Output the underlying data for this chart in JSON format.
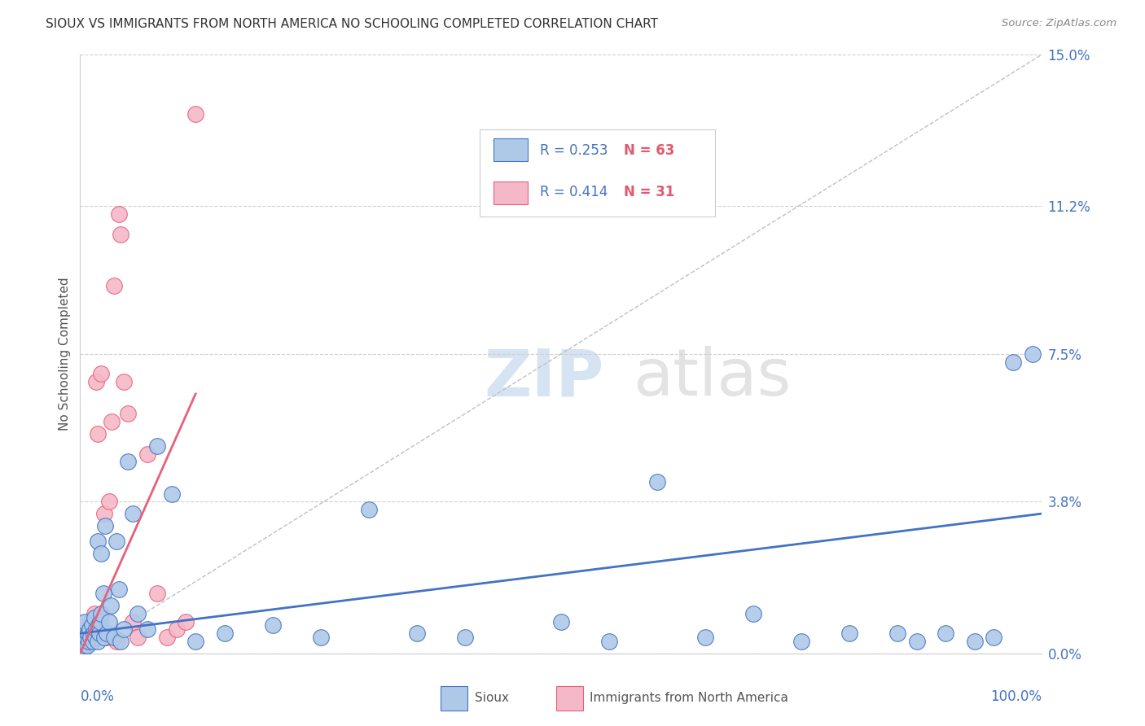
{
  "title": "SIOUX VS IMMIGRANTS FROM NORTH AMERICA NO SCHOOLING COMPLETED CORRELATION CHART",
  "source": "Source: ZipAtlas.com",
  "ylabel": "No Schooling Completed",
  "ytick_values": [
    0.0,
    3.8,
    7.5,
    11.2,
    15.0
  ],
  "xlim": [
    0.0,
    100.0
  ],
  "ylim": [
    0.0,
    15.0
  ],
  "color_sioux_fill": "#aec9e8",
  "color_sioux_edge": "#4472c4",
  "color_imm_fill": "#f4b8c8",
  "color_imm_edge": "#e8607a",
  "color_sioux_line": "#4472c4",
  "color_imm_line": "#e8607a",
  "color_diagonal": "#c0c0c0",
  "color_grid": "#d0d0d0",
  "watermark_zip": "ZIP",
  "watermark_atlas": "atlas",
  "title_color": "#333333",
  "source_color": "#888888",
  "axis_label_color": "#4472c4",
  "legend_r_color": "#4472c4",
  "legend_n_color": "#e05a70",
  "sioux_x": [
    0.2,
    0.3,
    0.3,
    0.4,
    0.5,
    0.5,
    0.6,
    0.7,
    0.8,
    0.9,
    1.0,
    1.1,
    1.2,
    1.3,
    1.4,
    1.5,
    1.6,
    1.7,
    1.8,
    1.9,
    2.0,
    2.1,
    2.2,
    2.4,
    2.5,
    2.8,
    3.0,
    3.2,
    3.5,
    3.8,
    4.0,
    4.2,
    4.5,
    5.0,
    5.5,
    6.0,
    7.0,
    8.0,
    9.5,
    12.0,
    15.0,
    20.0,
    25.0,
    30.0,
    35.0,
    40.0,
    50.0,
    55.0,
    60.0,
    65.0,
    70.0,
    75.0,
    80.0,
    85.0,
    87.0,
    90.0,
    93.0,
    95.0,
    97.0,
    99.0,
    1.8,
    2.2,
    2.6
  ],
  "sioux_y": [
    0.3,
    0.1,
    0.5,
    0.2,
    0.4,
    0.8,
    0.3,
    0.2,
    0.5,
    0.3,
    0.6,
    0.4,
    0.7,
    0.3,
    0.5,
    0.9,
    0.4,
    0.6,
    0.3,
    0.7,
    0.5,
    0.8,
    1.0,
    1.5,
    0.4,
    0.5,
    0.8,
    1.2,
    0.4,
    2.8,
    1.6,
    0.3,
    0.6,
    4.8,
    3.5,
    1.0,
    0.6,
    5.2,
    4.0,
    0.3,
    0.5,
    0.7,
    0.4,
    3.6,
    0.5,
    0.4,
    0.8,
    0.3,
    4.3,
    0.4,
    1.0,
    0.3,
    0.5,
    0.5,
    0.3,
    0.5,
    0.3,
    0.4,
    7.3,
    7.5,
    2.8,
    2.5,
    3.2
  ],
  "immigrants_x": [
    0.2,
    0.3,
    0.5,
    0.6,
    0.8,
    1.0,
    1.2,
    1.4,
    1.5,
    1.7,
    1.8,
    2.0,
    2.2,
    2.5,
    2.8,
    3.0,
    3.3,
    3.5,
    3.8,
    4.0,
    4.2,
    4.5,
    5.0,
    5.5,
    6.0,
    7.0,
    8.0,
    9.0,
    10.0,
    11.0,
    12.0
  ],
  "immigrants_y": [
    0.1,
    0.3,
    0.2,
    0.4,
    0.6,
    0.8,
    0.5,
    0.7,
    1.0,
    6.8,
    5.5,
    0.9,
    7.0,
    3.5,
    0.4,
    3.8,
    5.8,
    9.2,
    0.3,
    11.0,
    10.5,
    6.8,
    6.0,
    0.8,
    0.4,
    5.0,
    1.5,
    0.4,
    0.6,
    0.8,
    13.5
  ],
  "sioux_line_x": [
    0.0,
    100.0
  ],
  "sioux_line_y": [
    0.5,
    3.5
  ],
  "imm_line_x": [
    0.0,
    12.0
  ],
  "imm_line_y": [
    0.0,
    6.5
  ]
}
